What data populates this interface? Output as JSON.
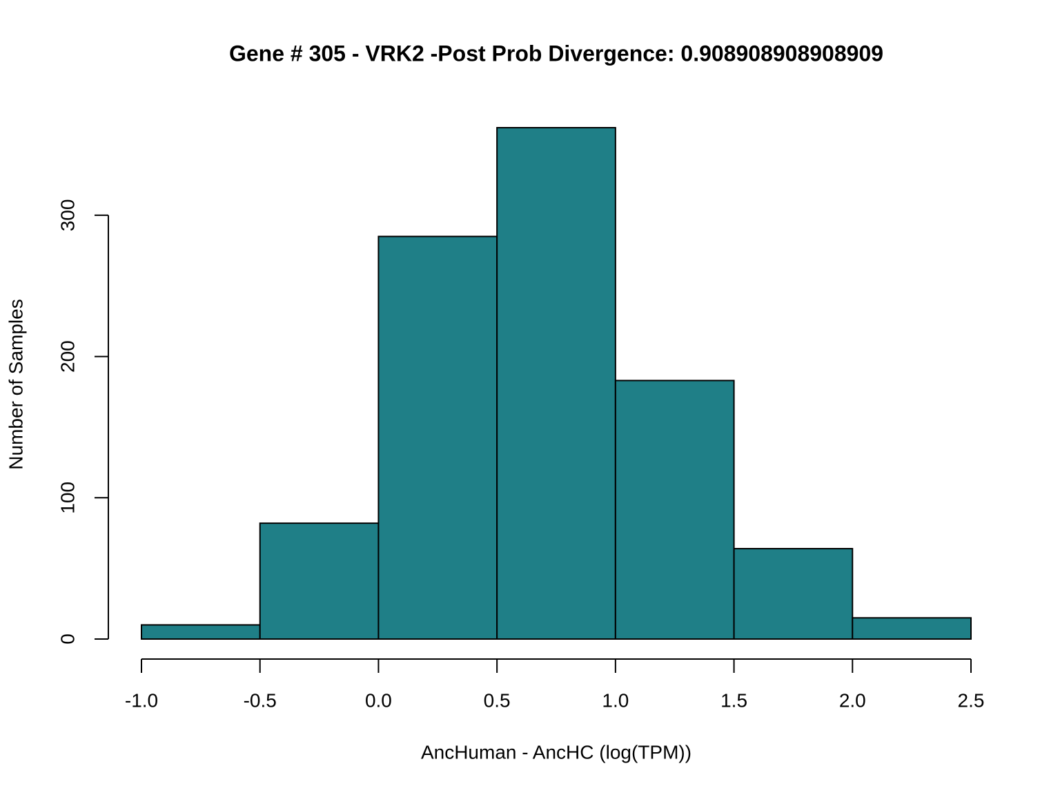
{
  "chart_data": {
    "type": "histogram",
    "title": "Gene # 305 - VRK2 -Post Prob Divergence: 0.908908908908909",
    "x_label": "AncHuman - AncHC (log(TPM))",
    "y_label": "Number of Samples",
    "bins": [
      -1,
      -0.5,
      0,
      0.5,
      1,
      1.5,
      2,
      2.5
    ],
    "values": [
      10,
      82,
      285,
      362,
      183,
      64,
      15
    ],
    "color": "#1f7f87",
    "xlim": [
      -1,
      2.5
    ],
    "xticks": [
      {
        "value": -1,
        "label": "-1.0"
      },
      -0.5,
      {
        "value": 0,
        "label": "0.0"
      },
      0.5,
      {
        "value": 1,
        "label": "1.0"
      },
      1.5,
      {
        "value": 2,
        "label": "2.0"
      },
      2.5
    ],
    "ylim": [
      0,
      362
    ],
    "yticks": [
      0,
      100,
      200,
      300
    ]
  }
}
